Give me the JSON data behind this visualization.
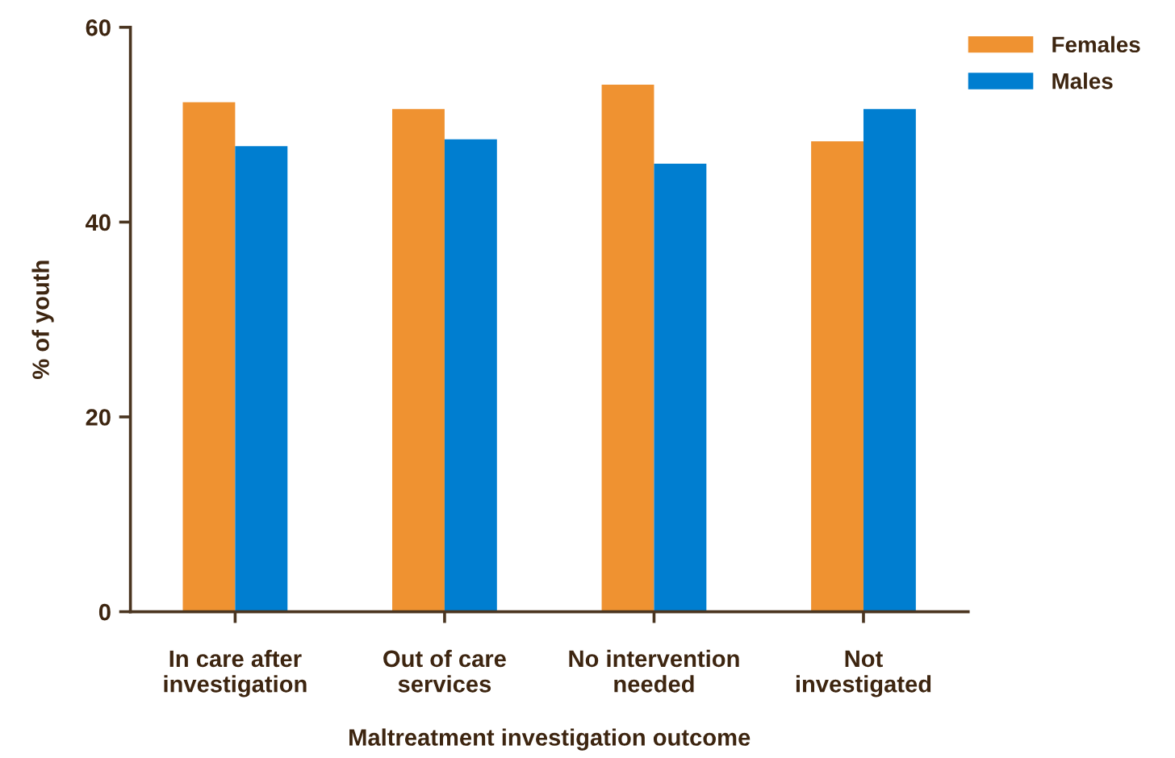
{
  "chart_data": {
    "type": "bar",
    "xlabel": "Maltreatment investigation outcome",
    "ylabel": "% of youth",
    "categories": [
      "In care after\ninvestigation",
      "Out of care\nservices",
      "No intervention\nneeded",
      "Not\ninvestigated"
    ],
    "series": [
      {
        "name": "Females",
        "color": "#ef9231",
        "values": [
          52.3,
          51.6,
          54.1,
          48.3
        ]
      },
      {
        "name": "Males",
        "color": "#007ed0",
        "values": [
          47.8,
          48.5,
          46.0,
          51.6
        ]
      }
    ],
    "ylim": [
      0,
      60
    ],
    "yticks": [
      0,
      20,
      40,
      60
    ],
    "grid": false,
    "legend": "top right"
  }
}
